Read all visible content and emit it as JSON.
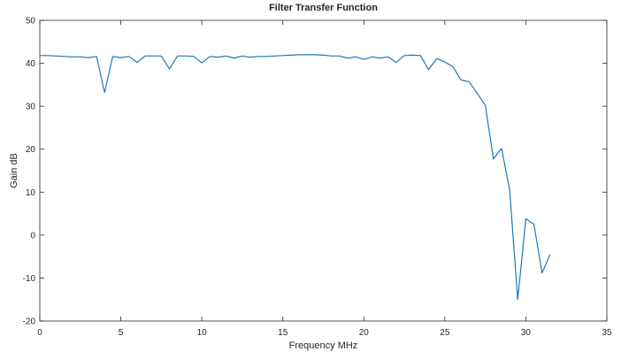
{
  "chart_data": {
    "type": "line",
    "title": "Filter Transfer Function",
    "xlabel": "Frequency MHz",
    "ylabel": "Gain dB",
    "xlim": [
      0,
      35
    ],
    "ylim": [
      -20,
      50
    ],
    "xticks": [
      0,
      5,
      10,
      15,
      20,
      25,
      30,
      35
    ],
    "yticks": [
      -20,
      -10,
      0,
      10,
      20,
      30,
      40,
      50
    ],
    "grid": false,
    "series": [
      {
        "color": "#1f77b4",
        "x": [
          0,
          0.5,
          1,
          1.5,
          2,
          2.5,
          3,
          3.5,
          4,
          4.5,
          5,
          5.5,
          6,
          6.5,
          7,
          7.5,
          8,
          8.5,
          9,
          9.5,
          10,
          10.5,
          11,
          11.5,
          12,
          12.5,
          13,
          13.5,
          14,
          14.5,
          15,
          15.5,
          16,
          16.5,
          17,
          17.5,
          18,
          18.5,
          19,
          19.5,
          20,
          20.5,
          21,
          21.5,
          22,
          22.5,
          23,
          23.5,
          24,
          24.5,
          25,
          25.5,
          26,
          26.5,
          27,
          27.5,
          28,
          28.5,
          29,
          29.5,
          30,
          30.5,
          31,
          31.5
        ],
        "y": [
          41.8,
          41.8,
          41.7,
          41.6,
          41.5,
          41.5,
          41.3,
          41.6,
          33.2,
          41.6,
          41.3,
          41.6,
          40.2,
          41.7,
          41.7,
          41.7,
          38.7,
          41.7,
          41.7,
          41.6,
          40.1,
          41.6,
          41.4,
          41.7,
          41.2,
          41.7,
          41.4,
          41.6,
          41.6,
          41.7,
          41.8,
          41.9,
          42.0,
          42.0,
          42.0,
          41.9,
          41.7,
          41.7,
          41.2,
          41.5,
          40.9,
          41.5,
          41.2,
          41.5,
          40.2,
          41.8,
          41.9,
          41.8,
          38.5,
          41.1,
          40.3,
          39.2,
          36.1,
          35.7,
          33.0,
          30.2,
          17.7,
          20.2,
          10.5,
          -15.0,
          3.8,
          2.5,
          -8.8,
          -4.5
        ]
      }
    ]
  }
}
